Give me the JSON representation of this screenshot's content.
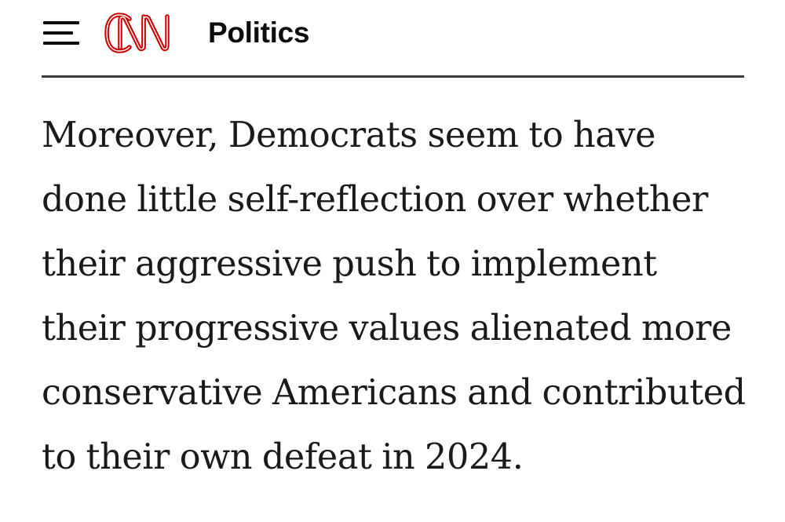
{
  "header": {
    "menu_icon": "hamburger-menu-icon",
    "logo_text": "CNN",
    "logo_color": "#cc0000",
    "section_title": "Politics"
  },
  "article": {
    "paragraph": "Moreover, Democrats seem to have done little self-reflection over whether their aggressive push to implement their progressive values alienated more conservative Americans and contributed to their own defeat in 2024."
  }
}
